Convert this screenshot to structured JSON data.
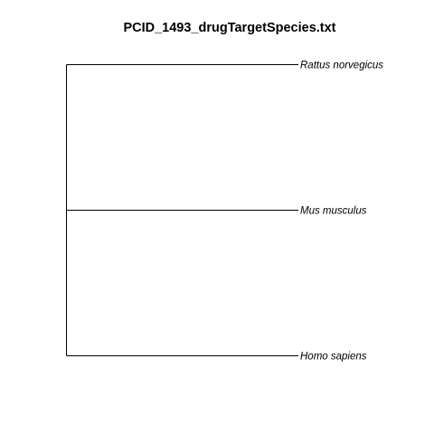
{
  "title": "PCID_1493_drugTargetSpecies.txt",
  "tree": {
    "leaves": [
      {
        "label": "Rattus norvegicus"
      },
      {
        "label": "Mus musculus"
      },
      {
        "label": "Homo sapiens"
      }
    ]
  }
}
